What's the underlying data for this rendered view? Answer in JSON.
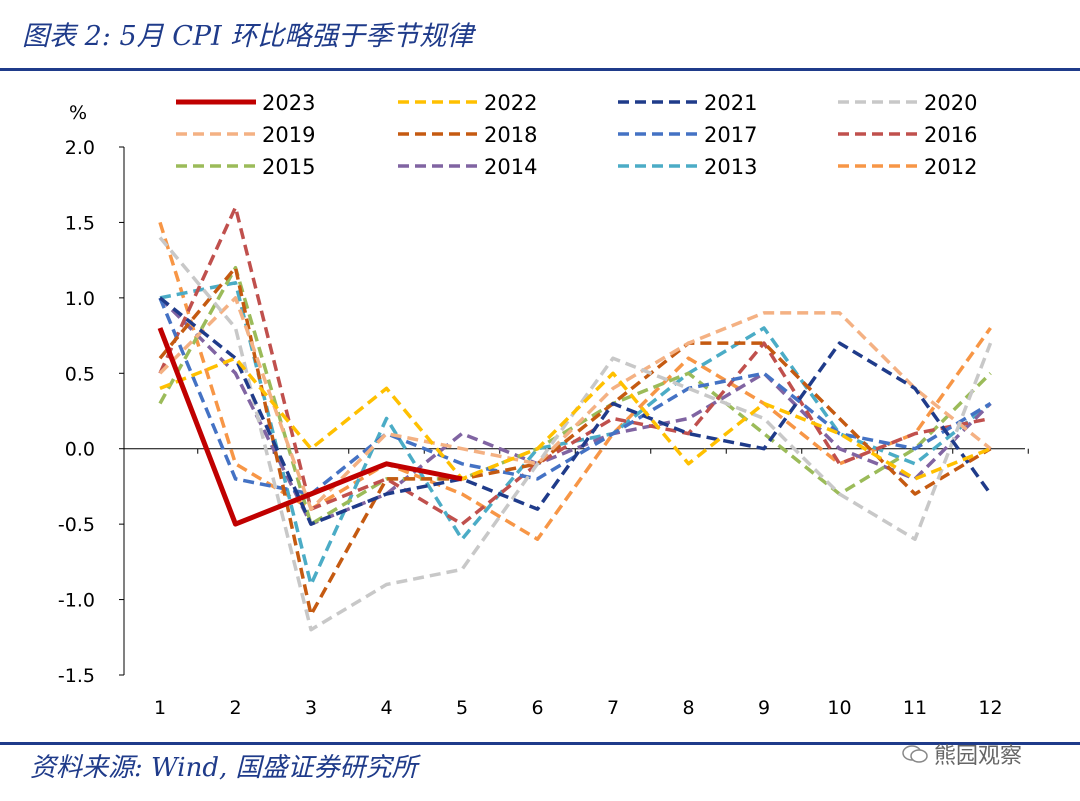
{
  "header": {
    "title": "图表 2: 5月 CPI 环比略强于季节规律"
  },
  "footer": {
    "source": "资料来源: Wind, 国盛证券研究所",
    "watermark": "熊园观察"
  },
  "chart_data": {
    "type": "line",
    "title": "图表 2: 5月 CPI 环比略强于季节规律",
    "ylabel": "%",
    "xlabel": "",
    "ylim": [
      -1.5,
      2.0
    ],
    "yticks": [
      "2.0",
      "1.5",
      "1.0",
      "0.5",
      "0.0",
      "-0.5",
      "-1.0",
      "-1.5"
    ],
    "ytick_values": [
      2.0,
      1.5,
      1.0,
      0.5,
      0.0,
      -0.5,
      -1.0,
      -1.5
    ],
    "categories": [
      "1",
      "2",
      "3",
      "4",
      "5",
      "6",
      "7",
      "8",
      "9",
      "10",
      "11",
      "12"
    ],
    "legend_position": "top",
    "series": [
      {
        "name": "2023",
        "color": "#c00000",
        "dash": "solid",
        "values": [
          0.8,
          -0.5,
          -0.3,
          -0.1,
          -0.2,
          null,
          null,
          null,
          null,
          null,
          null,
          null
        ]
      },
      {
        "name": "2022",
        "color": "#ffc000",
        "dash": "dashed",
        "values": [
          0.4,
          0.6,
          0.0,
          0.4,
          -0.2,
          0.0,
          0.5,
          -0.1,
          0.3,
          0.1,
          -0.2,
          0.0
        ]
      },
      {
        "name": "2021",
        "color": "#1f3b8a",
        "dash": "dashed",
        "values": [
          1.0,
          0.6,
          -0.5,
          -0.3,
          -0.2,
          -0.4,
          0.3,
          0.1,
          0.0,
          0.7,
          0.4,
          -0.3
        ]
      },
      {
        "name": "2020",
        "color": "#c8c8c8",
        "dash": "dashed",
        "values": [
          1.4,
          0.8,
          -1.2,
          -0.9,
          -0.8,
          -0.1,
          0.6,
          0.4,
          0.2,
          -0.3,
          -0.6,
          0.7
        ]
      },
      {
        "name": "2019",
        "color": "#f4b183",
        "dash": "dashed",
        "values": [
          0.5,
          1.0,
          -0.4,
          0.1,
          0.0,
          -0.1,
          0.4,
          0.7,
          0.9,
          0.9,
          0.4,
          0.0
        ]
      },
      {
        "name": "2018",
        "color": "#c55a11",
        "dash": "dashed",
        "values": [
          0.6,
          1.2,
          -1.1,
          -0.2,
          -0.2,
          -0.1,
          0.3,
          0.7,
          0.7,
          0.2,
          -0.3,
          0.0
        ]
      },
      {
        "name": "2017",
        "color": "#4472c4",
        "dash": "dashed",
        "values": [
          1.0,
          -0.2,
          -0.3,
          0.1,
          -0.1,
          -0.2,
          0.1,
          0.4,
          0.5,
          0.1,
          0.0,
          0.3
        ]
      },
      {
        "name": "2016",
        "color": "#c0504d",
        "dash": "dashed",
        "values": [
          0.5,
          1.6,
          -0.4,
          -0.2,
          -0.5,
          -0.1,
          0.2,
          0.1,
          0.7,
          -0.1,
          0.1,
          0.2
        ]
      },
      {
        "name": "2015",
        "color": "#9bbb59",
        "dash": "dashed",
        "values": [
          0.3,
          1.2,
          -0.5,
          -0.2,
          -0.2,
          0.0,
          0.3,
          0.5,
          0.1,
          -0.3,
          0.0,
          0.5
        ]
      },
      {
        "name": "2014",
        "color": "#8064a2",
        "dash": "dashed",
        "values": [
          1.0,
          0.5,
          -0.5,
          -0.3,
          0.1,
          -0.1,
          0.1,
          0.2,
          0.5,
          0.0,
          -0.2,
          0.3
        ]
      },
      {
        "name": "2013",
        "color": "#4bacc6",
        "dash": "dashed",
        "values": [
          1.0,
          1.1,
          -0.9,
          0.2,
          -0.6,
          0.0,
          0.1,
          0.5,
          0.8,
          0.1,
          -0.1,
          0.3
        ]
      },
      {
        "name": "2012",
        "color": "#f79646",
        "dash": "dashed",
        "values": [
          1.5,
          -0.1,
          -0.4,
          -0.1,
          -0.3,
          -0.6,
          0.1,
          0.6,
          0.3,
          -0.1,
          0.1,
          0.8
        ]
      }
    ]
  }
}
